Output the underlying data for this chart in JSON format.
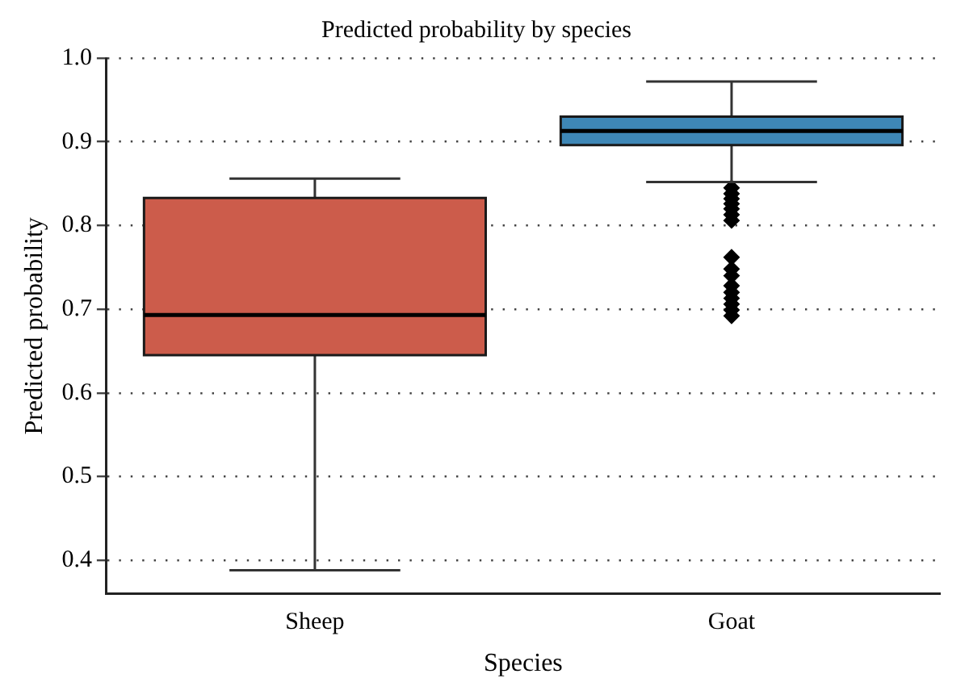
{
  "chart_data": {
    "type": "box",
    "title": "Predicted probability by species",
    "xlabel": "Species",
    "ylabel": "Predicted probability",
    "categories": [
      "Sheep",
      "Goat"
    ],
    "colors": [
      "#cc5c4b",
      "#3e87b6"
    ],
    "boxes": [
      {
        "low": 0.388,
        "q1": 0.645,
        "median": 0.693,
        "q3": 0.833,
        "high": 0.856
      },
      {
        "low": 0.852,
        "q1": 0.896,
        "median": 0.913,
        "q3": 0.93,
        "high": 0.972,
        "outliers": [
          0.845,
          0.838,
          0.832,
          0.826,
          0.82,
          0.813,
          0.806,
          0.762,
          0.748,
          0.74,
          0.728,
          0.72,
          0.713,
          0.706,
          0.699,
          0.692
        ]
      }
    ],
    "ylim": [
      0.36,
      1.0
    ],
    "yticks": [
      {
        "value": 0.4,
        "label": "0.4"
      },
      {
        "value": 0.5,
        "label": "0.5"
      },
      {
        "value": 0.6,
        "label": "0.6"
      },
      {
        "value": 0.7,
        "label": "0.7"
      },
      {
        "value": 0.8,
        "label": "0.8"
      },
      {
        "value": 0.9,
        "label": "0.9"
      },
      {
        "value": 1.0,
        "label": "1.0"
      }
    ],
    "grid": "y",
    "marker": "diamond"
  }
}
